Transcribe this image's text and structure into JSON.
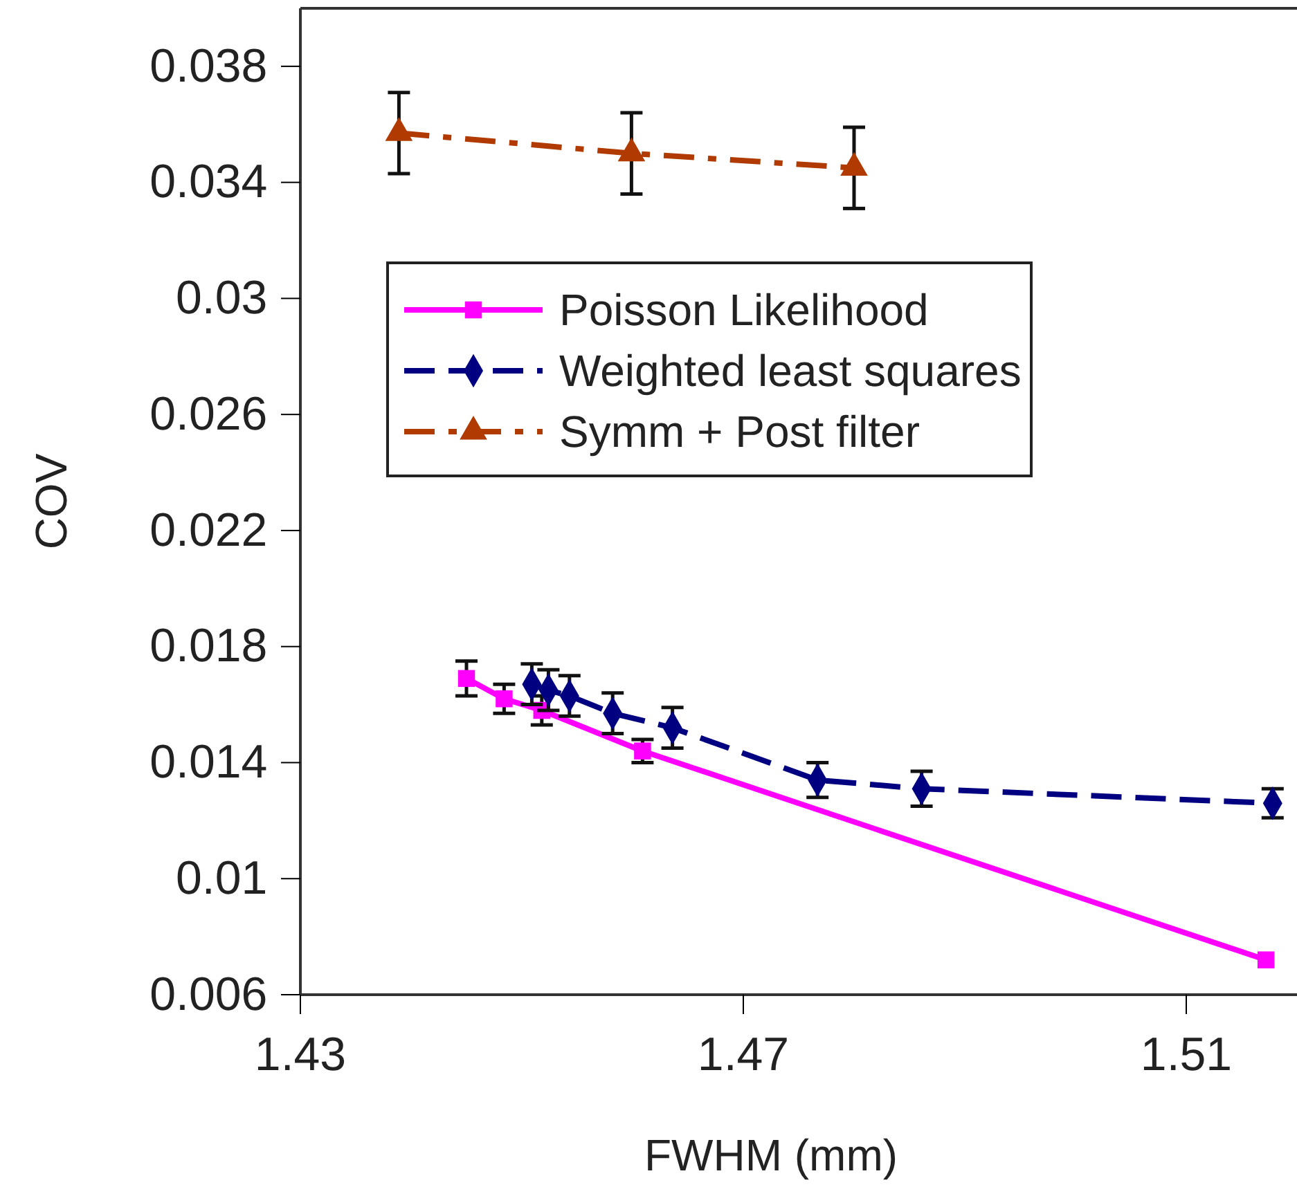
{
  "chart_data": {
    "type": "line",
    "xlabel": "FWHM (mm)",
    "ylabel": "COV",
    "xlim": [
      1.43,
      1.52
    ],
    "xticks": [
      1.43,
      1.47,
      1.51
    ],
    "ylim": [
      0.006,
      0.04
    ],
    "yticks": [
      0.006,
      0.01,
      0.014,
      0.018,
      0.022,
      0.026,
      0.03,
      0.034,
      0.038
    ],
    "grid": false,
    "legend": "top",
    "series": [
      {
        "name": "Poisson Likelihood",
        "color": "#ff00ff",
        "marker": "square",
        "line_style": "solid",
        "x": [
          1.445,
          1.4484,
          1.4518,
          1.4609,
          1.5172
        ],
        "values": [
          0.0169,
          0.0162,
          0.0158,
          0.0144,
          0.0072
        ],
        "errors": [
          0.0006,
          0.0005,
          0.0005,
          0.0004,
          null
        ]
      },
      {
        "name": "Weighted least squares",
        "color": "#000080",
        "marker": "diamond",
        "line_style": "dashed",
        "x": [
          1.4509,
          1.4524,
          1.4543,
          1.4582,
          1.4636,
          1.4767,
          1.4861,
          1.5178
        ],
        "values": [
          0.0167,
          0.0165,
          0.0163,
          0.0157,
          0.0152,
          0.0134,
          0.0131,
          0.0126
        ],
        "errors": [
          0.0007,
          0.0007,
          0.0007,
          0.0007,
          0.0007,
          0.0006,
          0.0006,
          0.0005
        ]
      },
      {
        "name": "Symm + Post filter",
        "color": "#b03a00",
        "marker": "triangle",
        "line_style": "dashdot",
        "x": [
          1.4389,
          1.4599,
          1.48
        ],
        "values": [
          0.0357,
          0.035,
          0.0345
        ],
        "errors": [
          0.0014,
          0.0014,
          0.0014
        ]
      }
    ]
  }
}
